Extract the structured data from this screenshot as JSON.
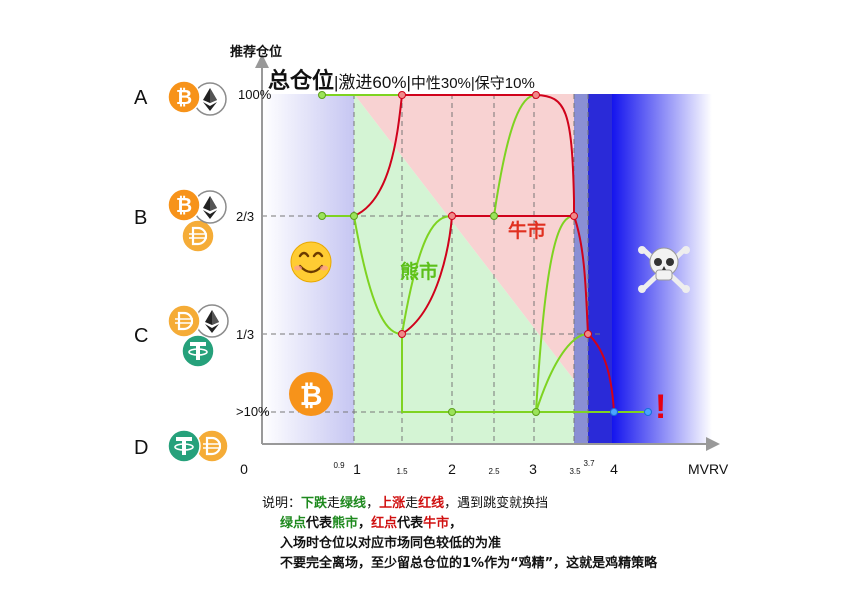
{
  "title_parts": [
    "总仓位",
    "|激进60%|",
    "中性30%",
    "|保守10%"
  ],
  "y_axis_label": "推荐仓位",
  "x_axis_label": "MVRV",
  "rows": [
    {
      "letter": "A",
      "level": "100%",
      "coins": [
        "BTC",
        "ETH"
      ]
    },
    {
      "letter": "B",
      "level": "2/3",
      "coins": [
        "BTC",
        "ETH",
        "DAI"
      ]
    },
    {
      "letter": "C",
      "level": "1/3",
      "coins": [
        "DAI",
        "ETH",
        "USDT"
      ]
    },
    {
      "letter": "D",
      "level": ">10%",
      "coins": [
        "USDT",
        "DAI"
      ]
    }
  ],
  "x_ticks": [
    {
      "v": 0,
      "label": "0",
      "small": false
    },
    {
      "v": 0.9,
      "label": "0.9",
      "small": true
    },
    {
      "v": 1,
      "label": "1",
      "small": false
    },
    {
      "v": 1.5,
      "label": "1.5",
      "small": true
    },
    {
      "v": 2,
      "label": "2",
      "small": false
    },
    {
      "v": 2.5,
      "label": "2.5",
      "small": true
    },
    {
      "v": 3,
      "label": "3",
      "small": false
    },
    {
      "v": 3.5,
      "label": "3.5",
      "small": true
    },
    {
      "v": 3.7,
      "label": "3.7",
      "small": true
    },
    {
      "v": 4,
      "label": "4",
      "small": false
    }
  ],
  "bear_label": "熊市",
  "bull_label": "牛市",
  "exclaim": "!",
  "emoji": {
    "smile": "😊",
    "skull": "☠️"
  },
  "colors": {
    "bear": "#7ed321",
    "bull": "#d0021b",
    "blue": "#1a1aff",
    "bear_bg": "#c8f0c8",
    "bull_bg": "#f6c6c6",
    "btc": "#f7931a",
    "dai": "#f5ac37",
    "usdt": "#26a17b"
  },
  "notes": {
    "l1a": "说明：",
    "l1b": "下跌",
    "l1c": "走",
    "l1d": "绿线",
    "l1e": "，",
    "l1f": "上涨",
    "l1g": "走",
    "l1h": "红线",
    "l1i": "，遇到跳变就换挡",
    "l2a": "绿点",
    "l2b": "代表",
    "l2c": "熊市",
    "l2d": "，",
    "l2e": "红点",
    "l2f": "代表",
    "l2g": "牛市",
    "l2h": "，",
    "l3": "入场时仓位以对应市场同色较低的为准",
    "l4": "不要完全离场，至少留总仓位的1%作为“鸡精”，这就是鸡精策略"
  }
}
